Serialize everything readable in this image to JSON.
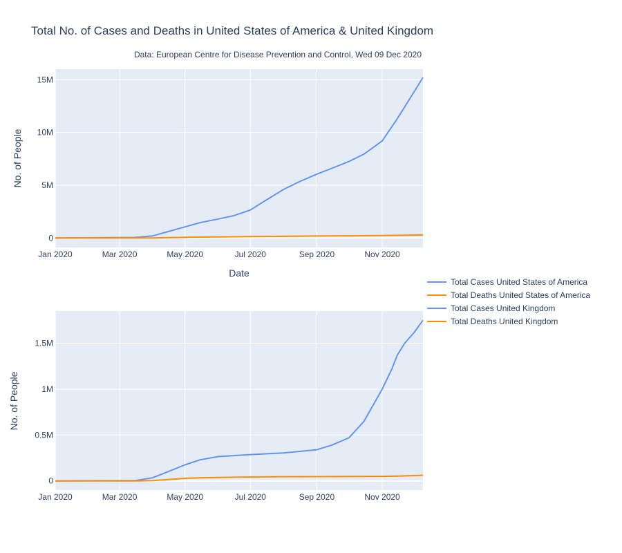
{
  "title": "Total No. of Cases and Deaths in United States of America & United Kingdom",
  "subtitle": "Data: European Centre for Disease Prevention and Control, Wed 09 Dec 2020",
  "colors": {
    "cases": "#6495ed",
    "deaths": "#ff8c00",
    "plot_bg": "#e5ecf6",
    "grid": "#ffffff"
  },
  "legend": {
    "placement": "right",
    "items": [
      {
        "label": "Total Cases United States of America",
        "color": "#6495ed"
      },
      {
        "label": "Total Deaths United States of America",
        "color": "#ff8c00"
      },
      {
        "label": "Total Cases United Kingdom",
        "color": "#6495ed"
      },
      {
        "label": "Total Deaths United Kingdom",
        "color": "#ff8c00"
      }
    ]
  },
  "chart_data": [
    {
      "type": "line",
      "xlabel": "Date",
      "ylabel": "No. of People",
      "xlim": [
        "2020-01-01",
        "2020-12-09"
      ],
      "ylim": [
        -900000,
        16000000
      ],
      "xticks": [
        {
          "value": "2020-01-01",
          "label": "Jan 2020"
        },
        {
          "value": "2020-03-01",
          "label": "Mar 2020"
        },
        {
          "value": "2020-05-01",
          "label": "May 2020"
        },
        {
          "value": "2020-07-01",
          "label": "Jul 2020"
        },
        {
          "value": "2020-09-01",
          "label": "Sep 2020"
        },
        {
          "value": "2020-11-01",
          "label": "Nov 2020"
        }
      ],
      "yticks": [
        {
          "value": 0,
          "label": "0"
        },
        {
          "value": 5000000,
          "label": "5M"
        },
        {
          "value": 10000000,
          "label": "10M"
        },
        {
          "value": 15000000,
          "label": "15M"
        }
      ],
      "grid": true,
      "series": [
        {
          "name": "Total Cases United States of America",
          "color": "#6495ed",
          "x": [
            "2020-01-01",
            "2020-03-15",
            "2020-04-01",
            "2020-04-15",
            "2020-05-01",
            "2020-05-15",
            "2020-06-01",
            "2020-06-15",
            "2020-07-01",
            "2020-07-15",
            "2020-08-01",
            "2020-08-15",
            "2020-09-01",
            "2020-09-15",
            "2020-10-01",
            "2020-10-15",
            "2020-11-01",
            "2020-11-15",
            "2020-12-01",
            "2020-12-09"
          ],
          "y": [
            0,
            50000,
            200000,
            600000,
            1050000,
            1450000,
            1800000,
            2100000,
            2650000,
            3550000,
            4600000,
            5300000,
            6050000,
            6600000,
            7250000,
            7950000,
            9200000,
            11300000,
            13900000,
            15200000
          ]
        },
        {
          "name": "Total Deaths United States of America",
          "color": "#ff8c00",
          "x": [
            "2020-01-01",
            "2020-03-15",
            "2020-04-01",
            "2020-05-01",
            "2020-06-01",
            "2020-07-01",
            "2020-08-01",
            "2020-09-01",
            "2020-10-01",
            "2020-11-01",
            "2020-12-01",
            "2020-12-09"
          ],
          "y": [
            0,
            100,
            5000,
            64000,
            105000,
            128000,
            154000,
            185000,
            208000,
            230000,
            270000,
            287000
          ]
        }
      ]
    },
    {
      "type": "line",
      "xlabel": "",
      "ylabel": "No. of People",
      "xlim": [
        "2020-01-01",
        "2020-12-09"
      ],
      "ylim": [
        -100000,
        1850000
      ],
      "xticks": [
        {
          "value": "2020-01-01",
          "label": "Jan 2020"
        },
        {
          "value": "2020-03-01",
          "label": "Mar 2020"
        },
        {
          "value": "2020-05-01",
          "label": "May 2020"
        },
        {
          "value": "2020-07-01",
          "label": "Jul 2020"
        },
        {
          "value": "2020-09-01",
          "label": "Sep 2020"
        },
        {
          "value": "2020-11-01",
          "label": "Nov 2020"
        }
      ],
      "yticks": [
        {
          "value": 0,
          "label": "0"
        },
        {
          "value": 500000,
          "label": "0.5M"
        },
        {
          "value": 1000000,
          "label": "1M"
        },
        {
          "value": 1500000,
          "label": "1.5M"
        }
      ],
      "grid": true,
      "series": [
        {
          "name": "Total Cases United Kingdom",
          "color": "#6495ed",
          "x": [
            "2020-01-01",
            "2020-03-15",
            "2020-04-01",
            "2020-04-15",
            "2020-05-01",
            "2020-05-15",
            "2020-06-01",
            "2020-07-01",
            "2020-08-01",
            "2020-09-01",
            "2020-09-15",
            "2020-10-01",
            "2020-10-15",
            "2020-11-01",
            "2020-11-10",
            "2020-11-15",
            "2020-11-22",
            "2020-12-01",
            "2020-12-09"
          ],
          "y": [
            0,
            3000,
            35000,
            100000,
            175000,
            230000,
            265000,
            287000,
            305000,
            340000,
            390000,
            470000,
            650000,
            1000000,
            1220000,
            1370000,
            1500000,
            1620000,
            1750000
          ]
        },
        {
          "name": "Total Deaths United Kingdom",
          "color": "#ff8c00",
          "x": [
            "2020-01-01",
            "2020-03-15",
            "2020-04-01",
            "2020-04-15",
            "2020-05-01",
            "2020-05-15",
            "2020-06-01",
            "2020-07-01",
            "2020-08-01",
            "2020-09-01",
            "2020-10-01",
            "2020-11-01",
            "2020-11-15",
            "2020-12-01",
            "2020-12-09"
          ],
          "y": [
            0,
            100,
            4000,
            15000,
            28000,
            34000,
            38000,
            43000,
            46000,
            47000,
            48000,
            50000,
            52000,
            58000,
            62000
          ]
        }
      ]
    }
  ]
}
